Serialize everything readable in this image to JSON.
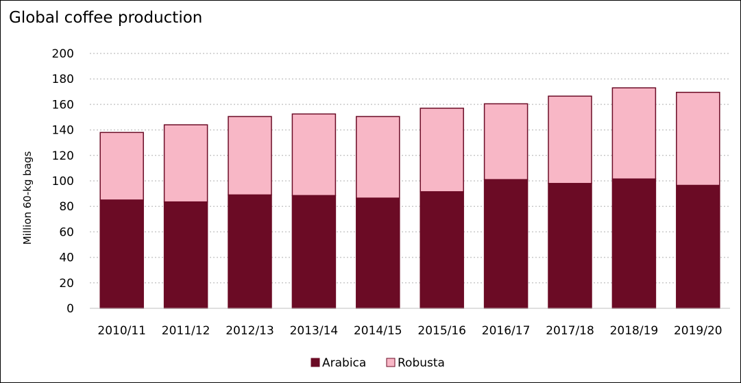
{
  "chart_data": {
    "type": "bar",
    "stacked": true,
    "title": "Global coffee production",
    "xlabel": "",
    "ylabel": "Million 60-kg bags",
    "ylim": [
      0,
      200
    ],
    "ytick_step": 20,
    "yticks": [
      "0",
      "20",
      "40",
      "60",
      "80",
      "100",
      "120",
      "140",
      "160",
      "180",
      "200"
    ],
    "grid": "horizontal dotted",
    "legend_position": "bottom",
    "categories": [
      "2010/11",
      "2011/12",
      "2012/13",
      "2013/14",
      "2014/15",
      "2015/16",
      "2016/17",
      "2017/18",
      "2018/19",
      "2019/20"
    ],
    "series": [
      {
        "name": "Arabica",
        "color": "#6b0b25",
        "values": [
          85,
          83.5,
          89,
          88.5,
          86.5,
          91.5,
          101,
          98,
          101.5,
          96.5
        ]
      },
      {
        "name": "Robusta",
        "color": "#f8b7c6",
        "values": [
          53,
          60.5,
          61.5,
          64,
          64,
          65.5,
          59.5,
          68.5,
          71.5,
          73
        ]
      }
    ],
    "bar_outline_color": "#6b0b25"
  }
}
